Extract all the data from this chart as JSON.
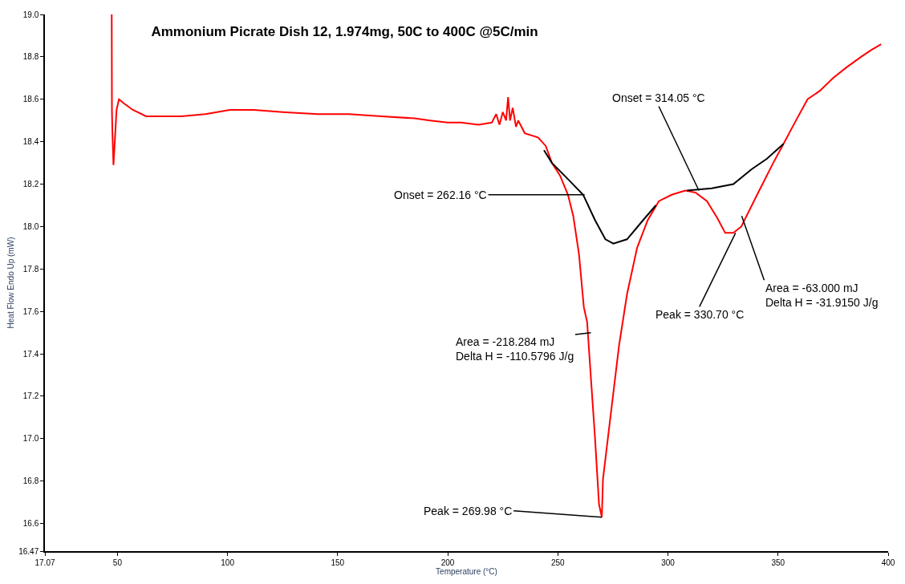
{
  "chart_data": {
    "type": "line",
    "title": "Ammonium Picrate Dish 12, 1.974mg, 50C to 400C @5C/min",
    "xlabel": "Temperature (°C)",
    "ylabel": "Heat Flow Endo Up (mW)",
    "series": [
      {
        "color": "#ff0000",
        "x": [
          47.4,
          47.5,
          47.7,
          48.2,
          48.8,
          49.6,
          50.7,
          53,
          57,
          63,
          70,
          79,
          90,
          101,
          112,
          125,
          141,
          155,
          170,
          185,
          192,
          200,
          206,
          214,
          220,
          222,
          223.5,
          225,
          226.5,
          227.4,
          228.3,
          229.5,
          231,
          232,
          235,
          241,
          244.5,
          247.3,
          251,
          254.6,
          257,
          259.6,
          261.8,
          263.3,
          264.4,
          266.9,
          268.7,
          269.98,
          270.5,
          274.2,
          277.8,
          281.4,
          286,
          290.8,
          295.9,
          301.7,
          307.9,
          312.6,
          317.7,
          322.4,
          326,
          329.7,
          333.3,
          340.5,
          347.8,
          352.5,
          357.6,
          363.4,
          369,
          375,
          381,
          387.7,
          392,
          396.8
        ],
        "values": [
          19.0,
          18.55,
          18.45,
          18.29,
          18.4,
          18.55,
          18.6,
          18.58,
          18.55,
          18.52,
          18.52,
          18.52,
          18.53,
          18.55,
          18.55,
          18.54,
          18.53,
          18.53,
          18.52,
          18.51,
          18.5,
          18.49,
          18.49,
          18.48,
          18.49,
          18.53,
          18.48,
          18.54,
          18.5,
          18.61,
          18.5,
          18.56,
          18.47,
          18.5,
          18.44,
          18.42,
          18.38,
          18.3,
          18.24,
          18.15,
          18.05,
          17.87,
          17.62,
          17.55,
          17.38,
          17.0,
          16.69,
          16.63,
          16.81,
          17.13,
          17.44,
          17.68,
          17.9,
          18.03,
          18.12,
          18.15,
          18.17,
          18.16,
          18.12,
          18.04,
          17.97,
          17.97,
          18.0,
          18.15,
          18.3,
          18.39,
          18.49,
          18.6,
          18.64,
          18.7,
          18.75,
          18.8,
          18.83,
          18.86
        ]
      },
      {
        "color": "#000000",
        "x": [
          243.7,
          247.3,
          254,
          261.5,
          266.9,
          271.6,
          275.2,
          281.4,
          288.7,
          294.5,
          301,
          308.6,
          319.9,
          329.7,
          338,
          345,
          352.5
        ],
        "values": [
          18.36,
          18.3,
          18.23,
          18.15,
          18.03,
          17.94,
          17.92,
          17.94,
          18.03,
          18.1,
          null,
          18.17,
          18.18,
          18.2,
          18.27,
          18.32,
          18.39
        ]
      }
    ],
    "annotations": [
      {
        "text": "Onset = 262.16 °C",
        "x": 262.16,
        "y": 18.15
      },
      {
        "text": "Area = -218.284 mJ\nDelta H = -110.5796 J/g",
        "x": 265,
        "y": 17.5
      },
      {
        "text": "Peak = 269.98 °C",
        "x": 269.98,
        "y": 16.63
      },
      {
        "text": "Onset = 314.05 °C",
        "x": 314.05,
        "y": 18.17
      },
      {
        "text": "Peak = 330.70 °C",
        "x": 330.7,
        "y": 17.97
      },
      {
        "text": "Area = -63.000 mJ\nDelta H = -31.9150 J/g",
        "x": 333.5,
        "y": 18.05
      }
    ],
    "xlim": [
      17.07,
      400
    ],
    "xticks": [
      17.07,
      50,
      100,
      150,
      200,
      250,
      300,
      350,
      400
    ],
    "ylim": [
      16.47,
      19.0
    ],
    "yticks": [
      16.47,
      16.6,
      16.8,
      {
        "value": 17.0,
        "label": "17.0"
      },
      17.2,
      17.4,
      17.6,
      17.8,
      {
        "value": 18.0,
        "label": "18.0"
      },
      18.2,
      18.4,
      18.6,
      18.8,
      {
        "value": 19.0,
        "label": "19.0"
      }
    ],
    "grid": false,
    "marker": "none",
    "line_style": "solid"
  }
}
